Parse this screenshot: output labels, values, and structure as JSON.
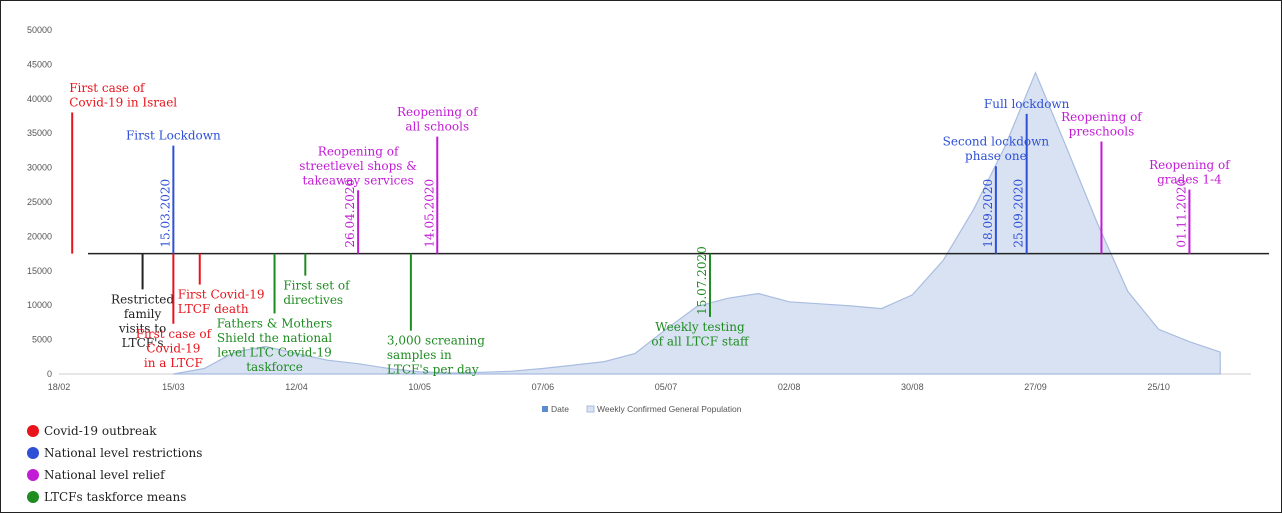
{
  "chart_data": {
    "type": "area",
    "title": "",
    "xlabel": "",
    "ylabel": "",
    "ylim": [
      0,
      50000
    ],
    "yticks": [
      0,
      5000,
      10000,
      15000,
      20000,
      25000,
      30000,
      35000,
      40000,
      45000,
      50000
    ],
    "xticks": [
      "18/02",
      "15/03",
      "12/04",
      "10/05",
      "07/06",
      "05/07",
      "02/08",
      "30/08",
      "27/09",
      "25/10"
    ],
    "xtick_dates": [
      "2020-02-18",
      "2020-03-15",
      "2020-04-12",
      "2020-05-10",
      "2020-06-07",
      "2020-07-05",
      "2020-08-02",
      "2020-08-30",
      "2020-09-27",
      "2020-10-25"
    ],
    "legend": [
      "Date",
      "Weekly Confirmed General Population"
    ],
    "legend_position": "bottom",
    "series": [
      {
        "name": "Weekly Confirmed General Population",
        "x": [
          "2020-03-15",
          "2020-03-22",
          "2020-03-29",
          "2020-04-05",
          "2020-04-12",
          "2020-04-19",
          "2020-04-26",
          "2020-05-03",
          "2020-05-10",
          "2020-05-17",
          "2020-05-24",
          "2020-05-31",
          "2020-06-07",
          "2020-06-14",
          "2020-06-21",
          "2020-06-28",
          "2020-07-05",
          "2020-07-12",
          "2020-07-19",
          "2020-07-26",
          "2020-08-02",
          "2020-08-09",
          "2020-08-16",
          "2020-08-23",
          "2020-08-30",
          "2020-09-06",
          "2020-09-13",
          "2020-09-20",
          "2020-09-27",
          "2020-10-04",
          "2020-10-11",
          "2020-10-18",
          "2020-10-25",
          "2020-11-01",
          "2020-11-08"
        ],
        "y": [
          0,
          800,
          3200,
          4000,
          3000,
          2000,
          1500,
          800,
          300,
          150,
          250,
          400,
          800,
          1300,
          1800,
          3000,
          6500,
          9800,
          11000,
          11700,
          10500,
          10200,
          9900,
          9500,
          11500,
          16500,
          24000,
          33000,
          43800,
          33000,
          22000,
          12000,
          6500,
          4700,
          3200
        ]
      }
    ],
    "markers": {
      "Date": "",
      "baseline_value": 17500,
      "events": [
        {
          "category": "outbreak",
          "date": "2020-02-21",
          "side": "up",
          "top": 38000,
          "label": [
            "First case of",
            "Covid-19 in Israel"
          ]
        },
        {
          "category": "restriction",
          "date": "2020-03-15",
          "side": "up",
          "top": 33200,
          "label": [
            "First Lockdown"
          ],
          "date_label": "15.03.2020"
        },
        {
          "category": "restriction",
          "date": "2020-09-18",
          "side": "up",
          "top": 30200,
          "label": [
            "Second lockdown",
            "phase one"
          ],
          "date_label": "18.09.2020"
        },
        {
          "category": "restriction",
          "date": "2020-09-25",
          "side": "up",
          "top": 37800,
          "label": [
            "Full lockdown"
          ],
          "date_label": "25.09.2020"
        },
        {
          "category": "relief",
          "date": "2020-04-26",
          "side": "up",
          "top": 26700,
          "label": [
            "Reopening of",
            "streetlevel shops &",
            "takeaway services"
          ],
          "date_label": "26.04.2020"
        },
        {
          "category": "relief",
          "date": "2020-05-14",
          "side": "up",
          "top": 34500,
          "label": [
            "Reopening of",
            "all schools"
          ],
          "date_label": "14.05.2020"
        },
        {
          "category": "relief",
          "date": "2020-10-12",
          "side": "up",
          "top": 33800,
          "label": [
            "Reopening of",
            "preschools"
          ]
        },
        {
          "category": "relief",
          "date": "2020-11-01",
          "side": "up",
          "top": 26800,
          "label": [
            "Reopening of",
            "grades 1-4"
          ],
          "date_label": "01.11.2020"
        },
        {
          "category": "other",
          "date": "2020-03-08",
          "side": "down",
          "bottom": 12300,
          "label": [
            "Restricted",
            "family",
            "visits to",
            "LTCF's"
          ]
        },
        {
          "category": "outbreak",
          "date": "2020-03-15",
          "side": "down",
          "bottom": 7300,
          "label": [
            "First case of",
            "Covid-19",
            "in a LTCF"
          ]
        },
        {
          "category": "outbreak",
          "date": "2020-03-21",
          "side": "down",
          "bottom": 13000,
          "label": [
            "First Covid-19",
            "LTCF death"
          ]
        },
        {
          "category": "taskforce",
          "date": "2020-04-07",
          "side": "down",
          "bottom": 8800,
          "label": [
            "Fathers & Mothers",
            "Shield the national",
            "level LTC Covid-19",
            "taskforce"
          ]
        },
        {
          "category": "taskforce",
          "date": "2020-04-14",
          "side": "down",
          "bottom": 14300,
          "label": [
            "First set of",
            "directives"
          ]
        },
        {
          "category": "taskforce",
          "date": "2020-05-08",
          "side": "down",
          "bottom": 6300,
          "label": [
            "3,000 screaning",
            "samples in",
            "LTCF's per day"
          ]
        },
        {
          "category": "taskforce",
          "date": "2020-07-15",
          "side": "down",
          "bottom": 8300,
          "label": [
            "Weekly testing",
            "of all LTCF staff"
          ],
          "date_label": "15.07.2020"
        }
      ]
    },
    "categories_legend": [
      {
        "key": "outbreak",
        "name": "Covid-19 outbreak",
        "color": "#e8141c"
      },
      {
        "key": "restriction",
        "name": "National level restrictions",
        "color": "#2e50d6"
      },
      {
        "key": "relief",
        "name": "National level relief",
        "color": "#c21bd6"
      },
      {
        "key": "taskforce",
        "name": "LTCFs taskforce means",
        "color": "#1f8c22"
      }
    ],
    "colors": {
      "other": "#222222",
      "area_fill": "#d8e2f2",
      "area_stroke": "#a9bde0",
      "legend_date": "#5b8ccf"
    }
  }
}
